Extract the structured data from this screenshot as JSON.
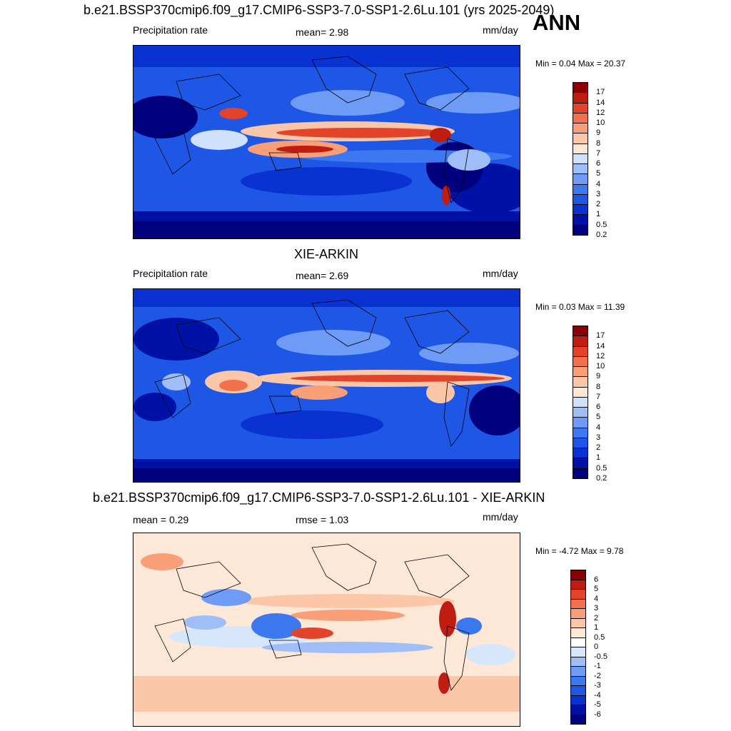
{
  "season": "ANN",
  "panels": [
    {
      "id": "model",
      "title": "b.e21.BSSP370cmip6.f09_g17.CMIP6-SSP3-7.0-SSP1-2.6Lu.101 (yrs 2025-2049)",
      "left_label": "Precipitation rate",
      "center_label": "mean=   2.98",
      "units": "mm/day",
      "minmax": "Min =   0.04 Max =  20.37"
    },
    {
      "id": "obs",
      "title": "XIE-ARKIN",
      "left_label": "Precipitation rate",
      "center_label": "mean=   2.69",
      "units": "mm/day",
      "minmax": "Min =   0.03 Max =  11.39"
    },
    {
      "id": "diff",
      "title": "b.e21.BSSP370cmip6.f09_g17.CMIP6-SSP3-7.0-SSP1-2.6Lu.101 - XIE-ARKIN",
      "left_label": "mean =   0.29",
      "center_label": "rmse =   1.03",
      "units": "mm/day",
      "minmax": "Min =  -4.72 Max =   9.78"
    }
  ],
  "chart_data": [
    {
      "type": "heatmap",
      "title": "b.e21.BSSP370cmip6.f09_g17.CMIP6-SSP3-7.0-SSP1-2.6Lu.101 (yrs 2025-2049)",
      "variable": "Precipitation rate",
      "units": "mm/day",
      "mean": 2.98,
      "min": 0.04,
      "max": 20.37,
      "colorbar_levels": [
        "0.2",
        "0.5",
        "1",
        "2",
        "3",
        "4",
        "5",
        "6",
        "7",
        "8",
        "9",
        "10",
        "12",
        "14",
        "17"
      ],
      "colorbar_colors": [
        "#00007f",
        "#0012a6",
        "#0a32d2",
        "#1e56e6",
        "#3c78f0",
        "#6e9bf5",
        "#9fbef8",
        "#cfe1fb",
        "#fde8d8",
        "#fcc6a8",
        "#f99f78",
        "#f2704c",
        "#e1442a",
        "#c01d12",
        "#8c0005"
      ]
    },
    {
      "type": "heatmap",
      "title": "XIE-ARKIN",
      "variable": "Precipitation rate",
      "units": "mm/day",
      "mean": 2.69,
      "min": 0.03,
      "max": 11.39,
      "colorbar_levels": [
        "0.2",
        "0.5",
        "1",
        "2",
        "3",
        "4",
        "5",
        "6",
        "7",
        "8",
        "9",
        "10",
        "12",
        "14",
        "17"
      ],
      "colorbar_colors": [
        "#00007f",
        "#0012a6",
        "#0a32d2",
        "#1e56e6",
        "#3c78f0",
        "#6e9bf5",
        "#9fbef8",
        "#cfe1fb",
        "#fde8d8",
        "#fcc6a8",
        "#f99f78",
        "#f2704c",
        "#e1442a",
        "#c01d12",
        "#8c0005"
      ]
    },
    {
      "type": "heatmap",
      "title": "b.e21.BSSP370cmip6.f09_g17.CMIP6-SSP3-7.0-SSP1-2.6Lu.101 - XIE-ARKIN",
      "units": "mm/day",
      "mean": 0.29,
      "rmse": 1.03,
      "min": -4.72,
      "max": 9.78,
      "colorbar_levels": [
        "-6",
        "-5",
        "-4",
        "-3",
        "-2",
        "-1",
        "-0.5",
        "0",
        "0.5",
        "1",
        "2",
        "3",
        "4",
        "5",
        "6"
      ],
      "colorbar_colors": [
        "#00007f",
        "#0012a6",
        "#0a32d2",
        "#1e56e6",
        "#3c78f0",
        "#6e9bf5",
        "#9fbef8",
        "#d6e6fb",
        "#ffffff",
        "#fde8d8",
        "#fcc6a8",
        "#f99f78",
        "#f2704c",
        "#e1442a",
        "#c01d12",
        "#8c0005"
      ]
    }
  ]
}
